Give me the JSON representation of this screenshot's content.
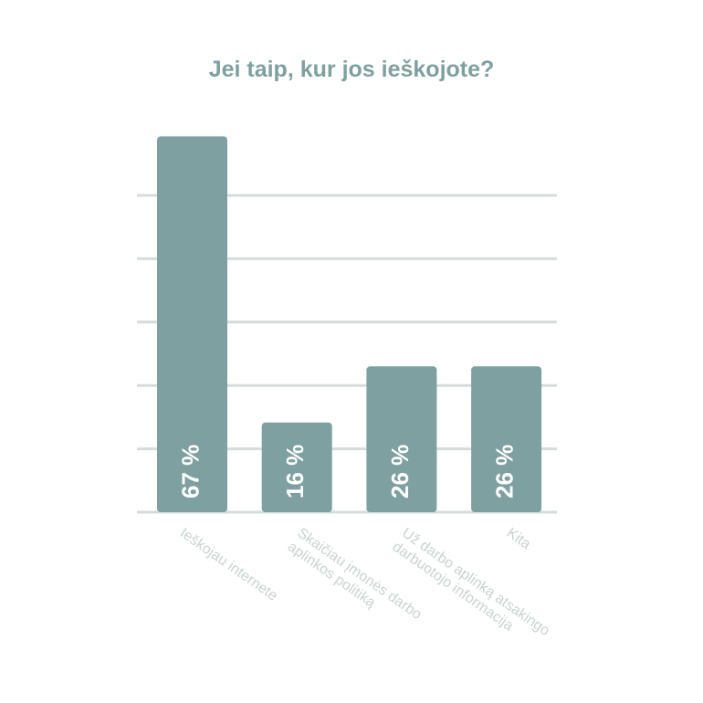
{
  "chart_data": {
    "type": "bar",
    "title": "Jei taip, kur jos ieškojote?",
    "categories": [
      "Ieškojau internete",
      "Skaičiau įmonės darbo\naplinkos politiką",
      "Už darbo aplinką atsakingo\ndarbuotojo informacija",
      "Kita"
    ],
    "values": [
      67,
      16,
      26,
      26
    ],
    "value_labels": [
      "67 %",
      "16 %",
      "26 %",
      "26 %"
    ],
    "color": "#7fa0a0",
    "ylim": [
      0,
      70
    ],
    "grid": true
  }
}
